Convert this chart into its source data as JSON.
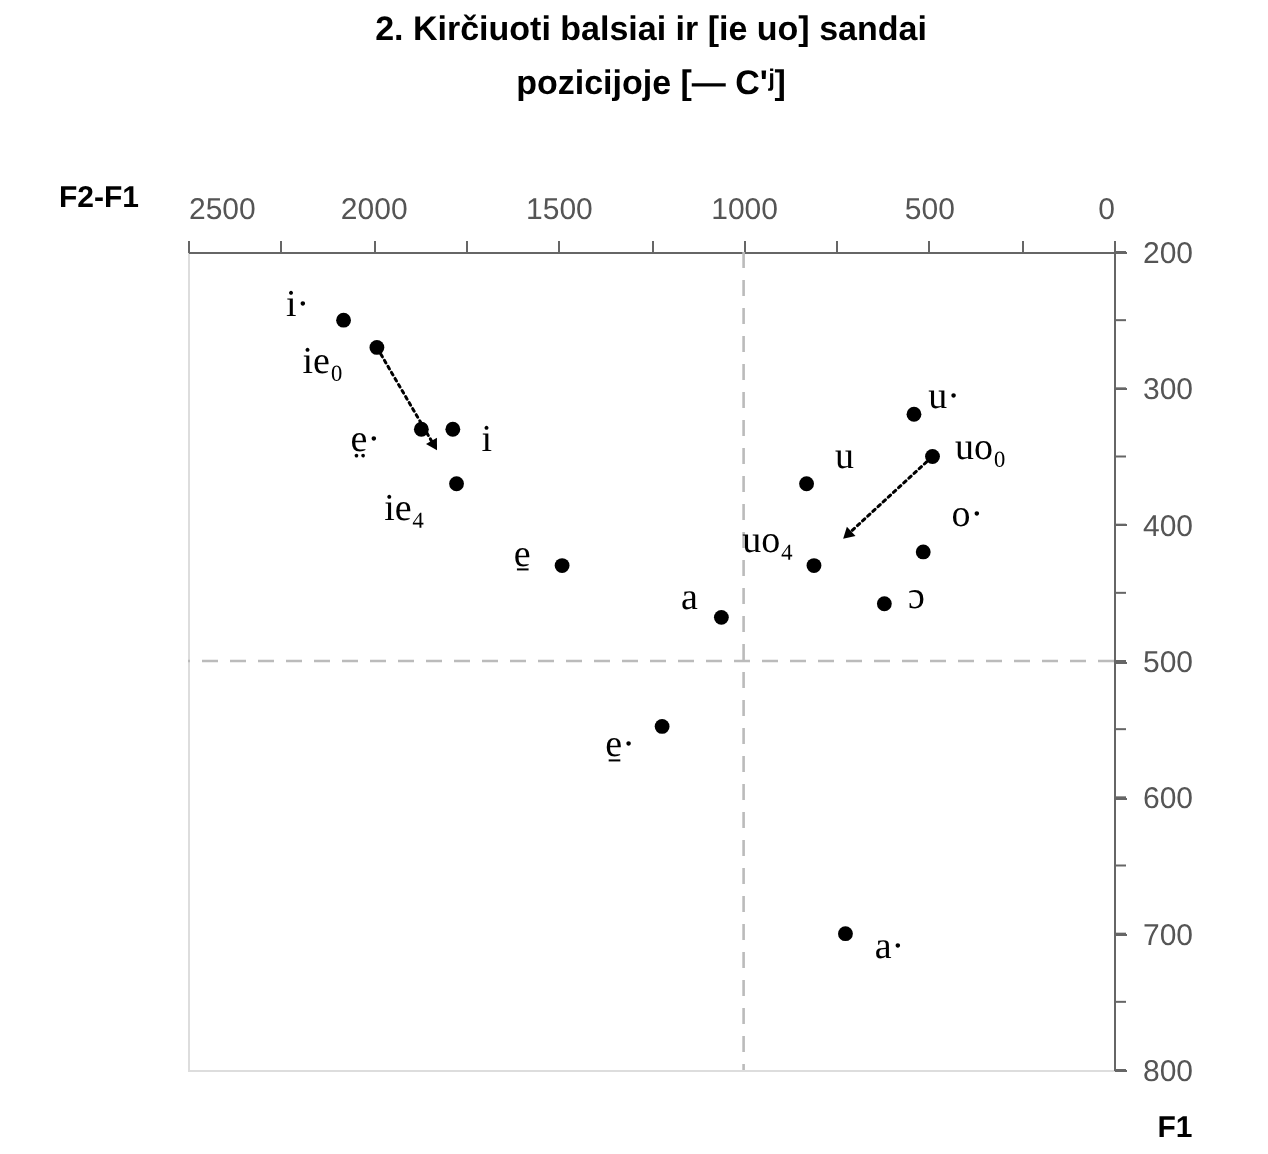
{
  "chart_data": {
    "type": "scatter",
    "title": "2. Kirčiuoti balsiai ir [ie uo] sandai",
    "subtitle": "pozicijoje [— C'ʲ]",
    "xlabel": "F2-F1",
    "ylabel": "F1",
    "x": [
      2080,
      1990,
      1870,
      1785,
      1775,
      1490,
      1060,
      1220,
      540,
      490,
      830,
      810,
      515,
      620,
      725
    ],
    "series": [
      {
        "color": "#000000",
        "values": [
          250,
          270,
          330,
          330,
          370,
          430,
          468,
          548,
          319,
          350,
          370,
          430,
          420,
          458,
          700
        ]
      }
    ],
    "xlim": [
      2500,
      0
    ],
    "ylim": [
      800,
      200
    ],
    "xticks": [
      2500,
      {
        "value": 2250,
        "label": null
      },
      2000,
      {
        "value": 1750,
        "label": null
      },
      1500,
      {
        "value": 1250,
        "label": null
      },
      1000,
      {
        "value": 750,
        "label": null
      },
      500,
      {
        "value": 250,
        "label": null
      },
      0
    ],
    "yticks": [
      200,
      {
        "value": 250,
        "label": null
      },
      300,
      {
        "value": 350,
        "label": null
      },
      400,
      {
        "value": 450,
        "label": null
      },
      500,
      {
        "value": 550,
        "label": null
      },
      600,
      {
        "value": 650,
        "label": null
      },
      700,
      {
        "value": 750,
        "label": null
      },
      800
    ],
    "marker": "circle",
    "ref_lines": [
      {
        "axis": "x",
        "value": 1000,
        "color": "#bbbbbb",
        "line_style": "dashed"
      },
      {
        "axis": "y",
        "value": 500,
        "color": "#bbbbbb",
        "line_style": "dashed"
      }
    ],
    "annotations": [
      {
        "text": "i·",
        "x": 2080,
        "y": 250
      },
      {
        "text": "ie₀",
        "x": 1990,
        "y": 270
      },
      {
        "text": "e̤·",
        "x": 1870,
        "y": 330
      },
      {
        "text": "i",
        "x": 1785,
        "y": 330
      },
      {
        "text": "ie₄",
        "x": 1775,
        "y": 370
      },
      {
        "text": "e̱",
        "x": 1490,
        "y": 430
      },
      {
        "text": "a",
        "x": 1060,
        "y": 468
      },
      {
        "text": "e̱·",
        "x": 1220,
        "y": 548
      },
      {
        "text": "u·",
        "x": 540,
        "y": 319
      },
      {
        "text": "uo₀",
        "x": 490,
        "y": 350
      },
      {
        "text": "u",
        "x": 830,
        "y": 370
      },
      {
        "text": "uo₄",
        "x": 810,
        "y": 430
      },
      {
        "text": "o·",
        "x": 515,
        "y": 420
      },
      {
        "text": "ɔ",
        "x": 620,
        "y": 458
      },
      {
        "text": "a·",
        "x": 725,
        "y": 700
      }
    ]
  }
}
